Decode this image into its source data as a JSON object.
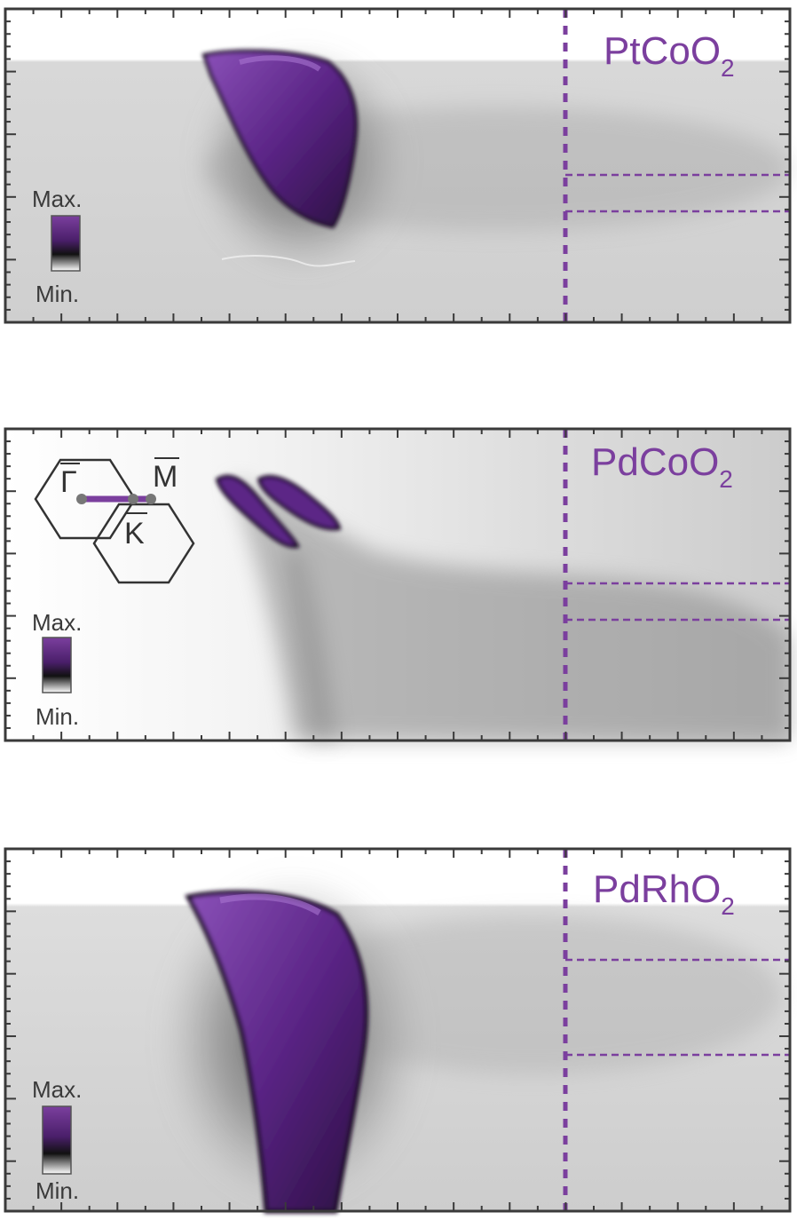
{
  "colors": {
    "accent": "#7b3f9e",
    "frame": "#3a3a3a",
    "band_dark": "#2a1140",
    "band_purple": "#6a3195"
  },
  "panels": [
    {
      "material": "PtCoO",
      "subscript": "2",
      "legend_max": "Max.",
      "legend_min": "Min."
    },
    {
      "material": "PdCoO",
      "subscript": "2",
      "legend_max": "Max.",
      "legend_min": "Min."
    },
    {
      "material": "PdRhO",
      "subscript": "2",
      "legend_max": "Max.",
      "legend_min": "Min."
    }
  ],
  "brillouin_zone": {
    "gamma": "Γ",
    "m": "M",
    "k": "K"
  }
}
